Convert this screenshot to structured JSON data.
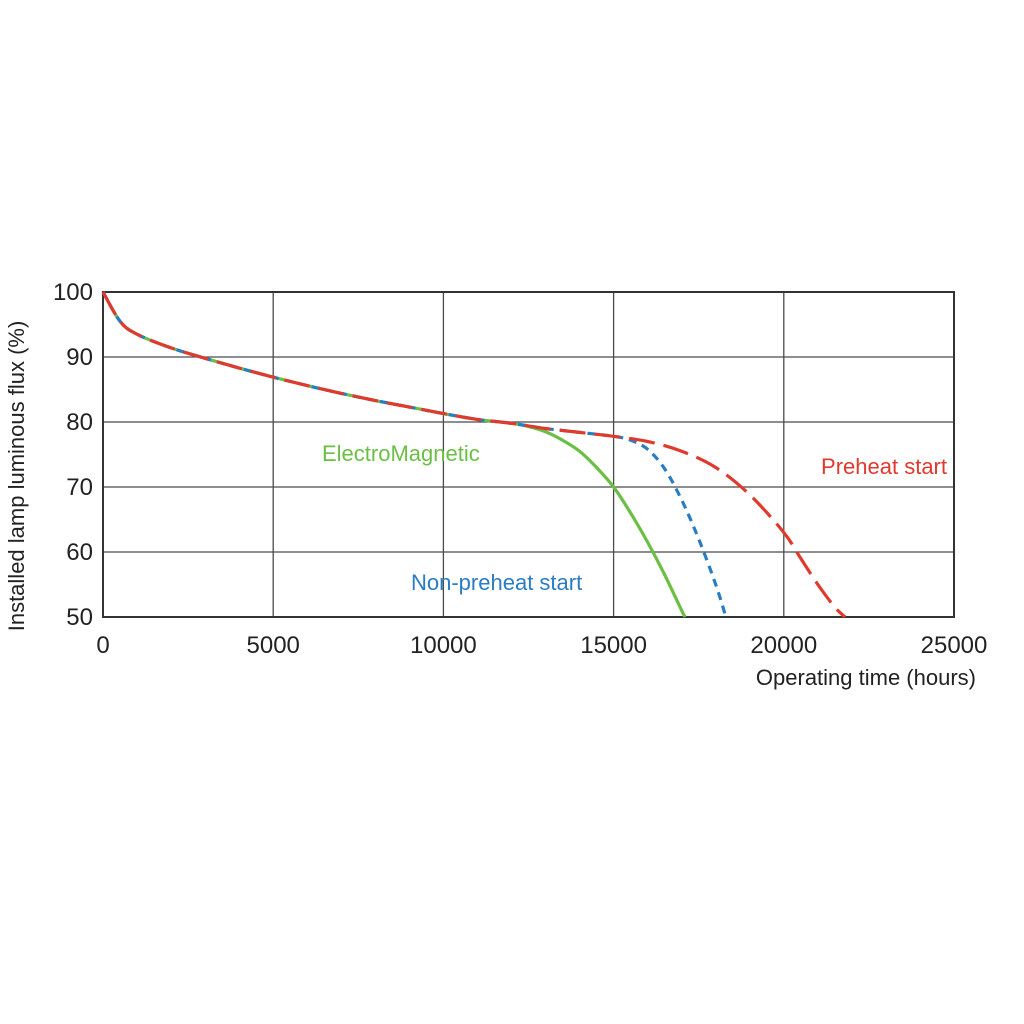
{
  "chart_data": {
    "type": "line",
    "xlabel": "Operating time (hours)",
    "ylabel": "Installed lamp luminous flux  (%)",
    "xlim": [
      0,
      25000
    ],
    "ylim": [
      50,
      100
    ],
    "x_ticks": [
      0,
      5000,
      10000,
      15000,
      20000,
      25000
    ],
    "y_ticks": [
      50,
      60,
      70,
      80,
      90,
      100
    ],
    "grid": true,
    "legend": "inline labels",
    "series": [
      {
        "name": "ElectroMagnetic",
        "color": "#6bbf45",
        "style": "solid",
        "x": [
          0,
          500,
          1000,
          2000,
          3000,
          4000,
          5000,
          6000,
          7000,
          8000,
          9000,
          10000,
          11000,
          12000,
          12500,
          13000,
          13500,
          14000,
          14500,
          15000,
          15500,
          16000,
          16500,
          17000,
          17100
        ],
        "y": [
          100,
          95.5,
          93.5,
          91.4,
          89.8,
          88.3,
          86.9,
          85.6,
          84.4,
          83.3,
          82.3,
          81.3,
          80.4,
          79.8,
          79.3,
          78.5,
          77.2,
          75.5,
          73.0,
          70.0,
          66.0,
          61.5,
          56.5,
          51.0,
          50.0
        ]
      },
      {
        "name": "Non-preheat start",
        "color": "#2a7cc4",
        "style": "short-dash",
        "x": [
          0,
          500,
          1000,
          2000,
          3000,
          4000,
          5000,
          6000,
          7000,
          8000,
          9000,
          10000,
          11000,
          12000,
          13000,
          14000,
          15000,
          15500,
          16000,
          16500,
          17000,
          17500,
          18000,
          18300
        ],
        "y": [
          100,
          95.5,
          93.5,
          91.4,
          89.8,
          88.3,
          86.9,
          85.6,
          84.4,
          83.3,
          82.3,
          81.3,
          80.4,
          79.8,
          79.0,
          78.4,
          77.8,
          77.2,
          75.8,
          72.8,
          68.0,
          62.0,
          55.0,
          50.0
        ]
      },
      {
        "name": "Preheat start",
        "color": "#e03a2e",
        "style": "long-dash",
        "x": [
          0,
          500,
          1000,
          2000,
          3000,
          4000,
          5000,
          6000,
          7000,
          8000,
          9000,
          10000,
          11000,
          12000,
          13000,
          14000,
          15000,
          16000,
          17000,
          18000,
          19000,
          20000,
          20500,
          21000,
          21500,
          21800
        ],
        "y": [
          100,
          95.5,
          93.5,
          91.4,
          89.8,
          88.3,
          86.9,
          85.6,
          84.4,
          83.3,
          82.3,
          81.3,
          80.4,
          79.8,
          79.0,
          78.4,
          77.8,
          77.0,
          75.5,
          73.0,
          68.8,
          63.0,
          59.0,
          55.0,
          51.5,
          50.0
        ]
      }
    ]
  }
}
